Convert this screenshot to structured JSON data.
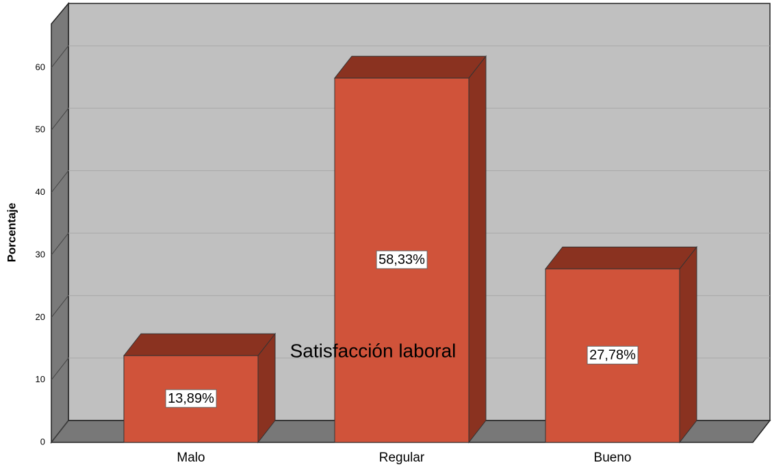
{
  "chart_data": {
    "type": "bar3d",
    "title": "Satisfacción laboral",
    "y_label": "Porcentaje",
    "categories": [
      "Malo",
      "Regular",
      "Bueno"
    ],
    "values": [
      13.89,
      58.33,
      27.78
    ],
    "value_labels": [
      "13,89%",
      "58,33%",
      "27,78%"
    ],
    "color": "#d0533a",
    "ylim": [
      0,
      67
    ],
    "yticks": [
      0,
      10,
      20,
      30,
      40,
      50,
      60
    ],
    "grid": true
  }
}
